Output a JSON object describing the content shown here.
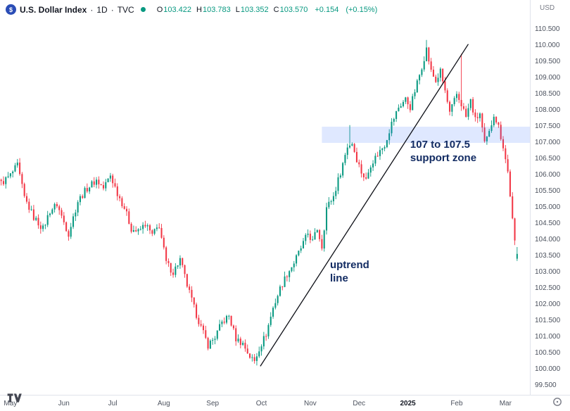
{
  "header": {
    "symbol_title": "U.S. Dollar Index",
    "sep": "·",
    "interval": "1D",
    "exchange": "TVC",
    "currency": "USD",
    "ohlc": {
      "o_label": "O",
      "o": "103.422",
      "h_label": "H",
      "h": "103.783",
      "l_label": "L",
      "l": "103.352",
      "c_label": "C",
      "c": "103.570",
      "change": "+0.154",
      "change_pct": "(+0.15%)"
    }
  },
  "icons": {
    "symbol_logo": "$",
    "market_status_dot": "green-circle",
    "tradingview_logo": "tradingview-mark",
    "corner_button": "circle-outline"
  },
  "colors": {
    "up": "#089981",
    "down": "#f23645",
    "annotation": "#132c63",
    "trendline": "#0c0e15",
    "zone_fill": "rgba(41,98,255,0.15)",
    "axis_text": "#4c525e"
  },
  "chart_data": {
    "type": "candlestick",
    "title": "U.S. Dollar Index, 1D, TVC",
    "y_min": 99.5,
    "y_max": 110.5,
    "grid": false,
    "y_ticks": [
      110.5,
      110.0,
      109.5,
      109.0,
      108.5,
      108.0,
      107.5,
      107.0,
      106.5,
      106.0,
      105.5,
      105.0,
      104.5,
      104.0,
      103.5,
      103.0,
      102.5,
      102.0,
      101.5,
      101.0,
      100.5,
      100.0,
      99.5
    ],
    "x_ticks": [
      {
        "label": "May",
        "t": 4
      },
      {
        "label": "Jun",
        "t": 27
      },
      {
        "label": "Jul",
        "t": 48
      },
      {
        "label": "Aug",
        "t": 70
      },
      {
        "label": "Sep",
        "t": 91
      },
      {
        "label": "Oct",
        "t": 112
      },
      {
        "label": "Nov",
        "t": 133
      },
      {
        "label": "Dec",
        "t": 154
      },
      {
        "label": "2025",
        "t": 175,
        "emphasis": true
      },
      {
        "label": "Feb",
        "t": 196
      },
      {
        "label": "Mar",
        "t": 217
      }
    ],
    "total_days": 228,
    "last_day": 222,
    "close_anchors": [
      [
        0,
        105.75
      ],
      [
        4,
        106.0
      ],
      [
        7,
        106.3
      ],
      [
        10,
        105.3
      ],
      [
        14,
        104.7
      ],
      [
        18,
        104.35
      ],
      [
        21,
        104.9
      ],
      [
        24,
        105.1
      ],
      [
        27,
        104.55
      ],
      [
        29,
        104.2
      ],
      [
        33,
        105.2
      ],
      [
        37,
        105.6
      ],
      [
        41,
        105.85
      ],
      [
        44,
        105.6
      ],
      [
        47,
        106.0
      ],
      [
        50,
        105.45
      ],
      [
        53,
        105.0
      ],
      [
        56,
        104.35
      ],
      [
        59,
        104.25
      ],
      [
        62,
        104.5
      ],
      [
        65,
        104.15
      ],
      [
        68,
        104.45
      ],
      [
        71,
        103.3
      ],
      [
        74,
        103.0
      ],
      [
        77,
        103.4
      ],
      [
        80,
        102.6
      ],
      [
        83,
        101.9
      ],
      [
        86,
        101.3
      ],
      [
        89,
        100.75
      ],
      [
        92,
        101.0
      ],
      [
        95,
        101.45
      ],
      [
        98,
        101.65
      ],
      [
        101,
        100.95
      ],
      [
        104,
        100.8
      ],
      [
        107,
        100.4
      ],
      [
        109,
        100.25
      ],
      [
        111,
        100.65
      ],
      [
        114,
        101.1
      ],
      [
        117,
        101.9
      ],
      [
        120,
        102.5
      ],
      [
        123,
        102.95
      ],
      [
        126,
        103.3
      ],
      [
        129,
        103.75
      ],
      [
        132,
        104.2
      ],
      [
        134,
        103.95
      ],
      [
        136,
        104.35
      ],
      [
        138,
        103.8
      ],
      [
        140,
        105.0
      ],
      [
        143,
        105.35
      ],
      [
        146,
        106.1
      ],
      [
        149,
        106.9
      ],
      [
        151,
        107.0
      ],
      [
        153,
        106.5
      ],
      [
        155,
        106.1
      ],
      [
        157,
        105.85
      ],
      [
        159,
        106.35
      ],
      [
        162,
        106.65
      ],
      [
        165,
        106.95
      ],
      [
        168,
        107.6
      ],
      [
        171,
        108.1
      ],
      [
        174,
        108.35
      ],
      [
        176,
        108.1
      ],
      [
        178,
        108.6
      ],
      [
        180,
        109.1
      ],
      [
        183,
        109.9
      ],
      [
        185,
        109.2
      ],
      [
        187,
        108.9
      ],
      [
        189,
        109.2
      ],
      [
        191,
        108.6
      ],
      [
        193,
        107.9
      ],
      [
        196,
        108.5
      ],
      [
        198,
        108.2
      ],
      [
        200,
        107.8
      ],
      [
        202,
        108.3
      ],
      [
        204,
        107.7
      ],
      [
        206,
        107.9
      ],
      [
        208,
        106.95
      ],
      [
        210,
        107.3
      ],
      [
        212,
        107.9
      ],
      [
        214,
        107.5
      ],
      [
        216,
        106.9
      ],
      [
        218,
        106.1
      ],
      [
        219,
        105.4
      ],
      [
        220,
        104.6
      ],
      [
        221,
        103.9
      ],
      [
        222,
        103.5
      ]
    ],
    "wick_extremes": [
      {
        "t": 183,
        "h": 110.18
      },
      {
        "t": 198,
        "h": 109.75
      },
      {
        "t": 150,
        "h": 107.55
      },
      {
        "t": 109,
        "l": 100.18
      }
    ],
    "last_candle": {
      "o": 103.422,
      "h": 103.783,
      "l": 103.352,
      "c": 103.57
    },
    "annotations": {
      "support_zone": {
        "lines": [
          "107 to 107.5",
          "support zone"
        ],
        "t1": 138,
        "t2": 228,
        "p1": 107.0,
        "p2": 107.5,
        "label_t": 176,
        "label_p": 107.15
      },
      "trendline": {
        "lines": [
          "uptrend",
          "line"
        ],
        "t1": 111.5,
        "p1": 100.1,
        "t2": 201,
        "p2": 110.05,
        "label_t": 141.5,
        "label_p": 103.43
      }
    }
  }
}
